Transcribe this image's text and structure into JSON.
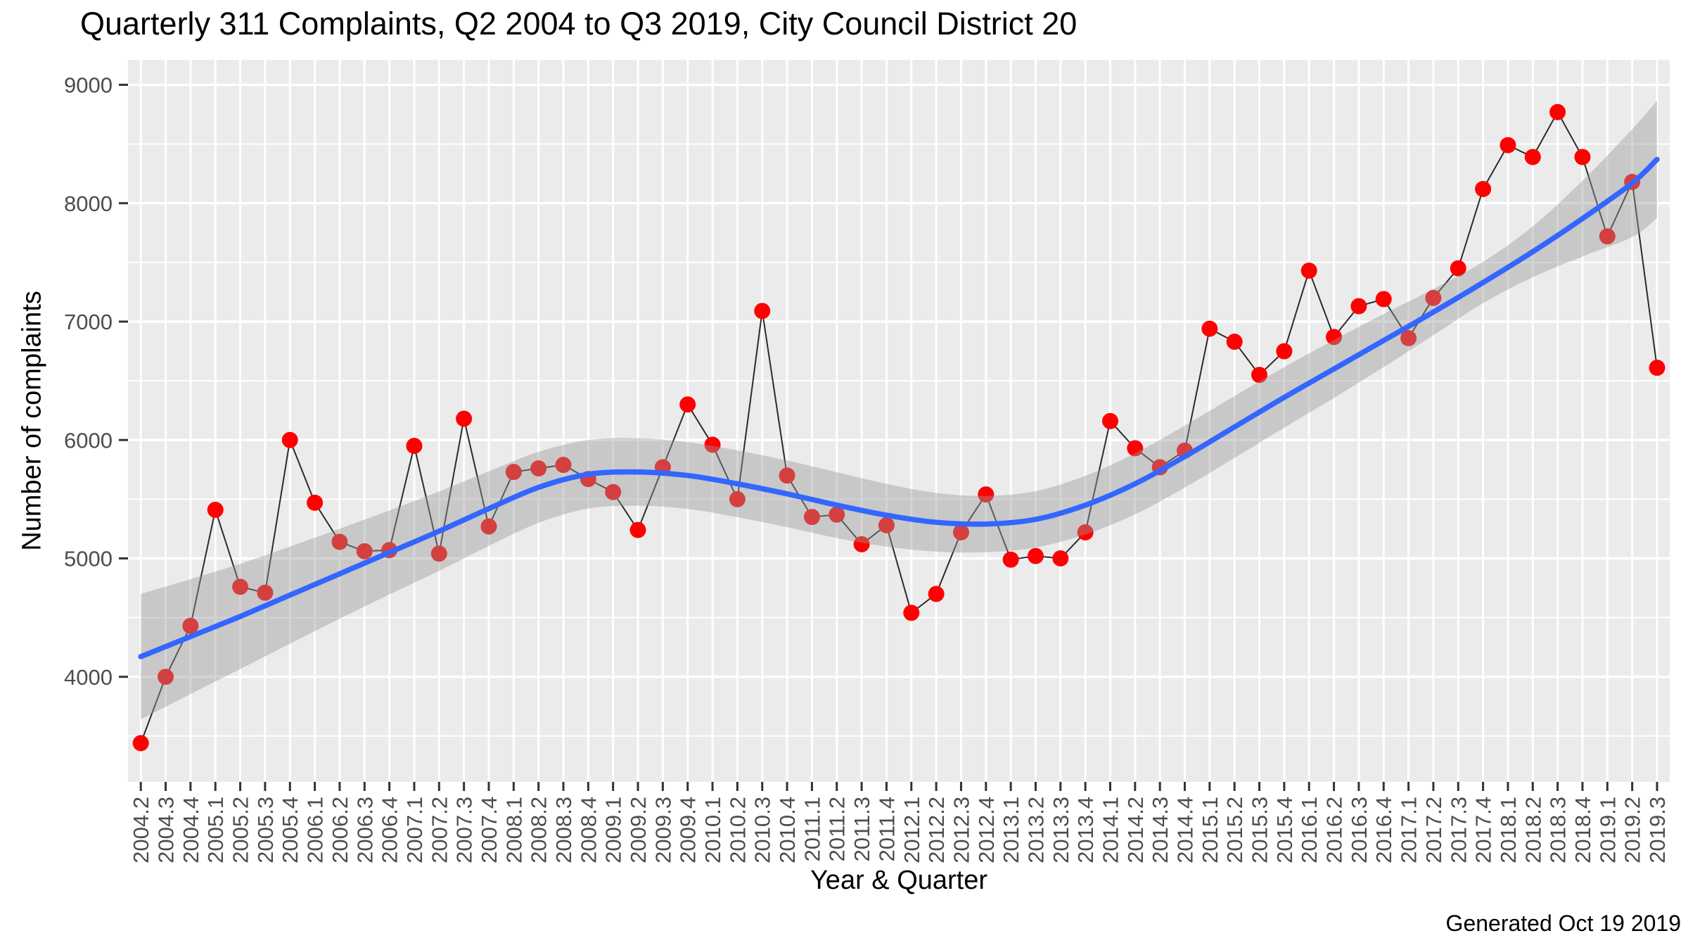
{
  "title": "Quarterly 311 Complaints, Q2 2004 to Q3 2019, City Council District 20",
  "caption": "Generated Oct 19 2019",
  "chart_data": {
    "type": "line",
    "title": "Quarterly 311 Complaints, Q2 2004 to Q3 2019, City Council District 20",
    "xlabel": "Year & Quarter",
    "ylabel": "Number of complaints",
    "legend_position": "none",
    "grid": "on",
    "ylim": [
      3113,
      9211
    ],
    "yticks": [
      4000,
      5000,
      6000,
      7000,
      8000,
      9000
    ],
    "yticks_minor": [
      3500,
      4500,
      5500,
      6500,
      7500,
      8500
    ],
    "categories": [
      "2004.2",
      "2004.3",
      "2004.4",
      "2005.1",
      "2005.2",
      "2005.3",
      "2005.4",
      "2006.1",
      "2006.2",
      "2006.3",
      "2006.4",
      "2007.1",
      "2007.2",
      "2007.3",
      "2007.4",
      "2008.1",
      "2008.2",
      "2008.3",
      "2008.4",
      "2009.1",
      "2009.2",
      "2009.3",
      "2009.4",
      "2010.1",
      "2010.2",
      "2010.3",
      "2010.4",
      "2011.1",
      "2011.2",
      "2011.3",
      "2011.4",
      "2012.1",
      "2012.2",
      "2012.3",
      "2012.4",
      "2013.1",
      "2013.2",
      "2013.3",
      "2013.4",
      "2014.1",
      "2014.2",
      "2014.3",
      "2014.4",
      "2015.1",
      "2015.2",
      "2015.3",
      "2015.4",
      "2016.1",
      "2016.2",
      "2016.3",
      "2016.4",
      "2017.1",
      "2017.2",
      "2017.3",
      "2017.4",
      "2018.1",
      "2018.2",
      "2018.3",
      "2018.4",
      "2019.1",
      "2019.2",
      "2019.3"
    ],
    "values": [
      3440,
      4000,
      4430,
      5410,
      4760,
      4710,
      6000,
      5470,
      5140,
      5060,
      5070,
      5950,
      5040,
      6180,
      5270,
      5730,
      5760,
      5790,
      5670,
      5560,
      5240,
      5770,
      6300,
      5960,
      5500,
      7090,
      5700,
      5350,
      5370,
      5120,
      5280,
      4540,
      4700,
      5220,
      5540,
      4990,
      5020,
      5000,
      5220,
      6160,
      5930,
      5770,
      5910,
      6940,
      6830,
      6550,
      6750,
      7430,
      6870,
      7130,
      7190,
      6860,
      7200,
      7450,
      8120,
      8490,
      8390,
      8770,
      8390,
      7720,
      8180,
      6610
    ],
    "smooth_trend": {
      "x_index": [
        0,
        2,
        4,
        6,
        8,
        10,
        12,
        14,
        16,
        18,
        20,
        22,
        24,
        26,
        28,
        30,
        32,
        34,
        36,
        38,
        40,
        42,
        44,
        46,
        48,
        50,
        52,
        54,
        56,
        58,
        60,
        61
      ],
      "y": [
        4170,
        4340,
        4510,
        4690,
        4870,
        5050,
        5230,
        5420,
        5600,
        5710,
        5730,
        5700,
        5630,
        5545,
        5450,
        5365,
        5305,
        5290,
        5330,
        5450,
        5630,
        5860,
        6110,
        6360,
        6600,
        6840,
        7080,
        7330,
        7590,
        7870,
        8170,
        8370
      ],
      "band_half_width": [
        530,
        485,
        445,
        410,
        380,
        355,
        335,
        315,
        300,
        290,
        285,
        282,
        282,
        282,
        278,
        265,
        248,
        238,
        238,
        248,
        258,
        262,
        262,
        256,
        245,
        225,
        195,
        175,
        215,
        320,
        455,
        495
      ]
    },
    "colors": {
      "point": "#FF0000",
      "series_line": "rgba(0,0,0,0.82)",
      "trend_line": "#3366FF",
      "ribbon_fill": "rgba(153,153,153,0.42)",
      "panel_background": "#EBEBEB",
      "gridline": "#FFFFFF",
      "tick_mark": "#333333",
      "tick_label": "#4D4D4D",
      "text": "#000000"
    }
  }
}
